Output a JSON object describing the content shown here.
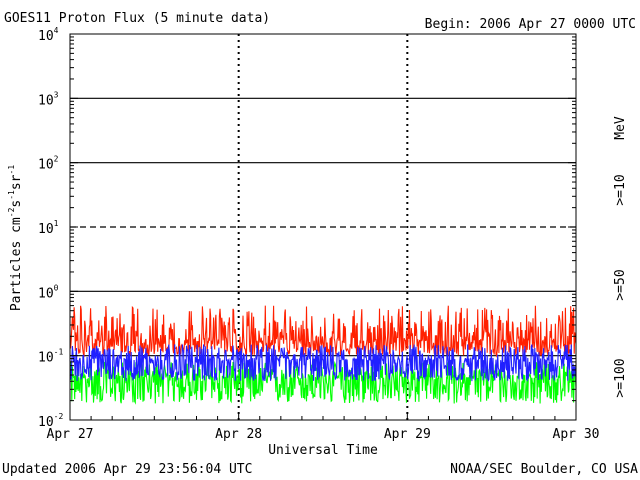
{
  "header": {
    "title": "GOES11 Proton Flux (5 minute data)",
    "begin": "Begin: 2006 Apr 27 0000 UTC"
  },
  "footer": {
    "updated": "Updated 2006 Apr 29 23:56:04 UTC",
    "credit": "NOAA/SEC Boulder, CO USA"
  },
  "chart_data": {
    "type": "line",
    "xlabel": "Universal Time",
    "ylabel": {
      "base": "Particles cm",
      "e1": "-2",
      "s": "s",
      "e2": "-1",
      "sr": "sr",
      "e3": "-1"
    },
    "y_scale": "log",
    "ylim": [
      0.01,
      10000
    ],
    "y_ticks": [
      {
        "base": "10",
        "exp": "4"
      },
      {
        "base": "10",
        "exp": "3"
      },
      {
        "base": "10",
        "exp": "2"
      },
      {
        "base": "10",
        "exp": "1"
      },
      {
        "base": "10",
        "exp": "0"
      },
      {
        "base": "10",
        "exp": "-1"
      },
      {
        "base": "10",
        "exp": "-2"
      }
    ],
    "x_ticks": [
      "Apr 27",
      "Apr 28",
      "Apr 29",
      "Apr 30"
    ],
    "xlim_days": [
      0,
      3
    ],
    "grid": "solid lines at 10^3, 10^2, 10^0 and 10^-1; dashed line at 10^1; dashed day separators",
    "unit_label": "MeV",
    "series": [
      {
        "name": ">=10",
        "color": "#ff2000",
        "median": 0.17,
        "range": [
          0.1,
          0.6
        ]
      },
      {
        "name": ">=50",
        "color": "#2020ff",
        "median": 0.085,
        "range": [
          0.04,
          0.15
        ]
      },
      {
        "name": ">=100",
        "color": "#00ff00",
        "median": 0.045,
        "range": [
          0.018,
          0.08
        ]
      }
    ]
  }
}
